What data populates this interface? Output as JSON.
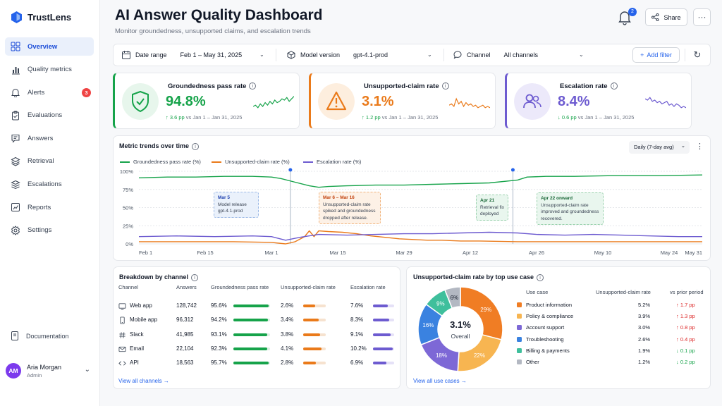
{
  "app": {
    "name": "TrustLens"
  },
  "sidebar": {
    "items": [
      {
        "label": "Overview",
        "icon": "grid-icon",
        "active": true
      },
      {
        "label": "Quality metrics",
        "icon": "bar-chart-icon"
      },
      {
        "label": "Alerts",
        "icon": "bell-icon",
        "badge": "3"
      },
      {
        "label": "Evaluations",
        "icon": "clipboard-icon"
      },
      {
        "label": "Answers",
        "icon": "chat-icon"
      },
      {
        "label": "Retrieval",
        "icon": "layers-icon"
      },
      {
        "label": "Escalations",
        "icon": "stack-icon"
      },
      {
        "label": "Reports",
        "icon": "report-icon"
      },
      {
        "label": "Settings",
        "icon": "gear-icon"
      }
    ],
    "documentation": "Documentation",
    "user": {
      "initials": "AM",
      "name": "Aria Morgan",
      "role": "Admin"
    }
  },
  "header": {
    "title": "AI Answer Quality Dashboard",
    "subtitle": "Monitor groundedness, unsupported claims, and escalation trends",
    "notifications": "2",
    "share": "Share",
    "more": "···"
  },
  "filters": {
    "date_label": "Date range",
    "date_value": "Feb 1 – May 31, 2025",
    "model_label": "Model version",
    "model_value": "gpt-4.1-prod",
    "channel_label": "Channel",
    "channel_value": "All channels",
    "add_filter": "Add filter"
  },
  "kpis": [
    {
      "title": "Groundedness pass rate",
      "value": "94.8%",
      "delta": "3.6 pp",
      "delta_dir": "up",
      "comparison": "vs Jan 1 – Jan 31, 2025",
      "color": "#16a34a"
    },
    {
      "title": "Unsupported-claim rate",
      "value": "3.1%",
      "delta": "1.2 pp",
      "delta_dir": "up",
      "comparison": "vs Jan 1 – Jan 31, 2025",
      "color": "#ea7a1a"
    },
    {
      "title": "Escalation rate",
      "value": "8.4%",
      "delta": "0.6 pp",
      "delta_dir": "down",
      "comparison": "vs Jan 1 – Jan 31, 2025",
      "color": "#6d5bd0"
    }
  ],
  "trends": {
    "title": "Metric trends over time",
    "granularity": "Daily (7-day avg)",
    "annotations": [
      {
        "title": "Mar 5",
        "body": "Model release gpt-4.1-prod"
      },
      {
        "title": "Mar 6 – Mar 16",
        "body": "Unsupported-claim rate spiked and groundedness dropped after release."
      },
      {
        "title": "Apr 21",
        "body": "Retrieval fix deployed"
      },
      {
        "title": "Apr 22 onward",
        "body": "Unsupported-claim rate improved and groundedness recovered."
      }
    ]
  },
  "chart_data": {
    "type": "line",
    "x_ticks": [
      "Feb 1",
      "Feb 15",
      "Mar 1",
      "Mar 15",
      "Mar 29",
      "Apr 12",
      "Apr 26",
      "May 10",
      "May 24",
      "May 31"
    ],
    "y_ticks": [
      "100%",
      "75%",
      "50%",
      "25%",
      "0%"
    ],
    "ylim": [
      0,
      100
    ],
    "series": [
      {
        "name": "Groundedness pass rate (%)",
        "color": "#16a34a",
        "values": [
          [
            0,
            91
          ],
          [
            6,
            92
          ],
          [
            12,
            92
          ],
          [
            18,
            93
          ],
          [
            24,
            93
          ],
          [
            28,
            92
          ],
          [
            30,
            90
          ],
          [
            33,
            85
          ],
          [
            36,
            80
          ],
          [
            38,
            78
          ],
          [
            40,
            79
          ],
          [
            44,
            80
          ],
          [
            50,
            81
          ],
          [
            56,
            81
          ],
          [
            62,
            82
          ],
          [
            68,
            83
          ],
          [
            74,
            84
          ],
          [
            80,
            88
          ],
          [
            82,
            92
          ],
          [
            86,
            93
          ],
          [
            92,
            93
          ],
          [
            100,
            94
          ],
          [
            110,
            94
          ],
          [
            119,
            95
          ]
        ]
      },
      {
        "name": "Unsupported-claim rate (%)",
        "color": "#ea7a1a",
        "values": [
          [
            0,
            3
          ],
          [
            10,
            3
          ],
          [
            20,
            3
          ],
          [
            28,
            2
          ],
          [
            31,
            0
          ],
          [
            33,
            3
          ],
          [
            35,
            10
          ],
          [
            36,
            18
          ],
          [
            37,
            10
          ],
          [
            38,
            18
          ],
          [
            40,
            17
          ],
          [
            43,
            16
          ],
          [
            46,
            14
          ],
          [
            49,
            11
          ],
          [
            52,
            9
          ],
          [
            55,
            7
          ],
          [
            58,
            6
          ],
          [
            61,
            5
          ],
          [
            64,
            5
          ],
          [
            68,
            4
          ],
          [
            72,
            4
          ],
          [
            80,
            3
          ],
          [
            90,
            3
          ],
          [
            100,
            3
          ],
          [
            110,
            3
          ],
          [
            119,
            3
          ]
        ]
      },
      {
        "name": "Escalation rate (%)",
        "color": "#6d5bd0",
        "values": [
          [
            0,
            10
          ],
          [
            8,
            11
          ],
          [
            16,
            10
          ],
          [
            24,
            11
          ],
          [
            28,
            10
          ],
          [
            31,
            5
          ],
          [
            34,
            9
          ],
          [
            38,
            13
          ],
          [
            44,
            12
          ],
          [
            50,
            13
          ],
          [
            56,
            14
          ],
          [
            62,
            14
          ],
          [
            68,
            15
          ],
          [
            74,
            16
          ],
          [
            80,
            15
          ],
          [
            84,
            13
          ],
          [
            90,
            12
          ],
          [
            96,
            13
          ],
          [
            102,
            12
          ],
          [
            108,
            11
          ],
          [
            114,
            10
          ],
          [
            119,
            10
          ]
        ]
      }
    ],
    "markers": [
      32,
      79
    ],
    "y_label": "",
    "x_label": ""
  },
  "channels": {
    "title": "Breakdown by channel",
    "columns": [
      "Channel",
      "Answers",
      "Groundedness pass rate",
      "Unsupported-claim rate",
      "Escalation rate"
    ],
    "rows": [
      {
        "name": "Web app",
        "icon": "monitor-icon",
        "answers": "128,742",
        "ground": "95.6%",
        "ground_v": 95.6,
        "unsup": "2.6%",
        "unsup_v": 2.6,
        "esc": "7.6%",
        "esc_v": 7.6
      },
      {
        "name": "Mobile app",
        "icon": "phone-icon",
        "answers": "96,312",
        "ground": "94.2%",
        "ground_v": 94.2,
        "unsup": "3.4%",
        "unsup_v": 3.4,
        "esc": "8.3%",
        "esc_v": 8.3
      },
      {
        "name": "Slack",
        "icon": "hash-icon",
        "answers": "41,985",
        "ground": "93.1%",
        "ground_v": 93.1,
        "unsup": "3.8%",
        "unsup_v": 3.8,
        "esc": "9.1%",
        "esc_v": 9.1
      },
      {
        "name": "Email",
        "icon": "mail-icon",
        "answers": "22,104",
        "ground": "92.3%",
        "ground_v": 92.3,
        "unsup": "4.1%",
        "unsup_v": 4.1,
        "esc": "10.2%",
        "esc_v": 10.2
      },
      {
        "name": "API",
        "icon": "code-icon",
        "answers": "18,563",
        "ground": "95.7%",
        "ground_v": 95.7,
        "unsup": "2.8%",
        "unsup_v": 2.8,
        "esc": "6.9%",
        "esc_v": 6.9
      }
    ],
    "view_all": "View all channels →"
  },
  "use_cases": {
    "title": "Unsupported-claim rate by top use case",
    "center_value": "3.1%",
    "center_label": "Overall",
    "columns": [
      "Use case",
      "Unsupported-claim rate",
      "vs prior period"
    ],
    "rows": [
      {
        "name": "Product information",
        "rate": "5.2%",
        "change": "↑ 1.7 pp",
        "dir": "up",
        "color": "#f07d24",
        "share": 29
      },
      {
        "name": "Policy & compliance",
        "rate": "3.9%",
        "change": "↑ 1.3 pp",
        "dir": "up",
        "color": "#f7b551",
        "share": 22
      },
      {
        "name": "Account support",
        "rate": "3.0%",
        "change": "↑ 0.8 pp",
        "dir": "up",
        "color": "#7d68d6",
        "share": 18
      },
      {
        "name": "Troubleshooting",
        "rate": "2.6%",
        "change": "↑ 0.4 pp",
        "dir": "up",
        "color": "#3a82e0",
        "share": 16
      },
      {
        "name": "Billing & payments",
        "rate": "1.9%",
        "change": "↓ 0.1 pp",
        "dir": "down",
        "color": "#3fbf9c",
        "share": 9
      },
      {
        "name": "Other",
        "rate": "1.2%",
        "change": "↓ 0.2 pp",
        "dir": "down",
        "color": "#b3b8c2",
        "share": 6
      }
    ],
    "pie_labels": [
      "29%",
      "22%",
      "18%",
      "16%",
      "9%",
      "6%"
    ],
    "view_all": "View all use cases →"
  }
}
